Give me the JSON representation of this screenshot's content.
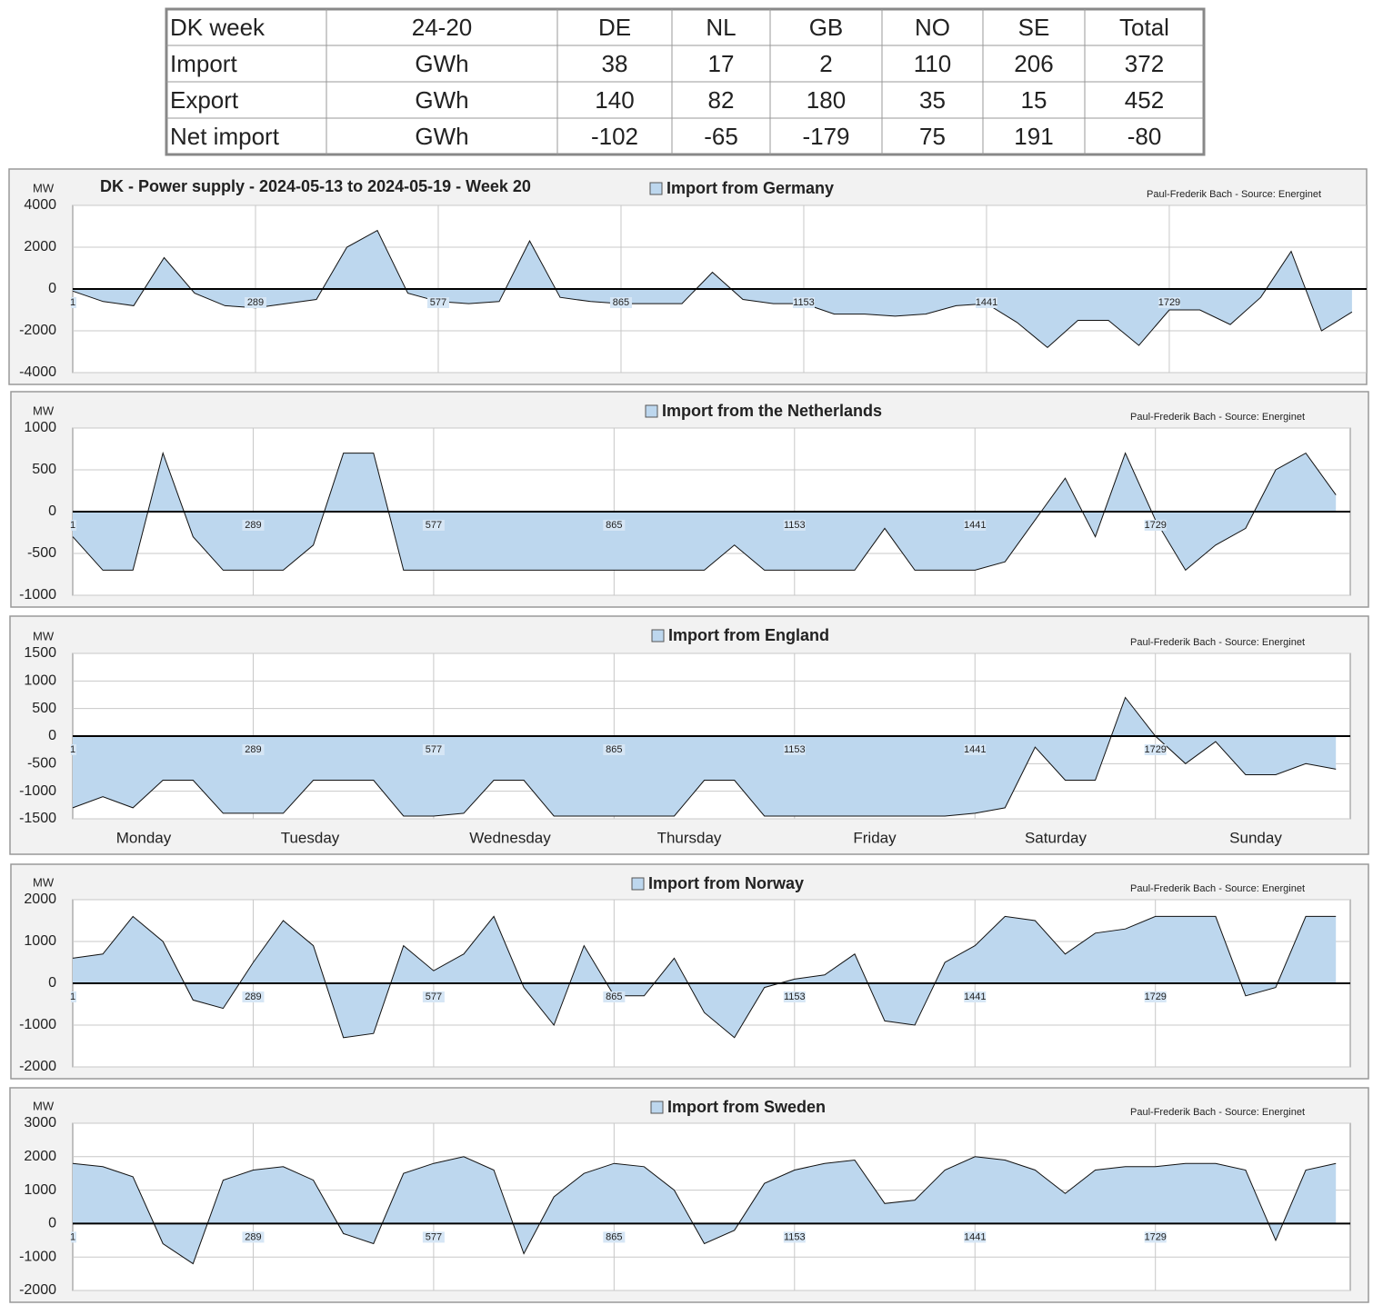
{
  "table": {
    "header": [
      "DK week",
      "24-20",
      "DE",
      "NL",
      "GB",
      "NO",
      "SE",
      "Total"
    ],
    "rows": [
      [
        "Import",
        "GWh",
        "38",
        "17",
        "2",
        "110",
        "206",
        "372"
      ],
      [
        "Export",
        "GWh",
        "140",
        "82",
        "180",
        "35",
        "15",
        "452"
      ],
      [
        "Net import",
        "GWh",
        "-102",
        "-65",
        "-179",
        "75",
        "191",
        "-80"
      ]
    ]
  },
  "chart_data": [
    {
      "type": "area",
      "title": "DK - Power supply  - 2024-05-13 to 2024-05-19 - Week 20",
      "y_label": "MW",
      "source": "Paul-Frederik Bach - Source: Energinet",
      "x": [
        1,
        49,
        97,
        145,
        193,
        241,
        289,
        337,
        385,
        433,
        481,
        529,
        577,
        625,
        673,
        721,
        769,
        817,
        865,
        913,
        961,
        1009,
        1057,
        1105,
        1153,
        1201,
        1249,
        1297,
        1345,
        1393,
        1441,
        1489,
        1537,
        1585,
        1633,
        1681,
        1729,
        1777,
        1825,
        1873,
        1921,
        1969,
        2017
      ],
      "series": [
        {
          "name": "Import from Germany",
          "color": "#bdd7ee",
          "values": [
            -100,
            -600,
            -800,
            1500,
            -200,
            -800,
            -900,
            -700,
            -500,
            2000,
            2800,
            -200,
            -600,
            -700,
            -600,
            2300,
            -400,
            -600,
            -700,
            -700,
            -700,
            800,
            -500,
            -700,
            -700,
            -1200,
            -1200,
            -1300,
            -1200,
            -800,
            -700,
            -1600,
            -2800,
            -1500,
            -1500,
            -2700,
            -1000,
            -1000,
            -1700,
            -400,
            1800,
            -2000,
            -1100
          ]
        }
      ],
      "xlim": [
        1,
        2040
      ],
      "xticks": [
        1,
        289,
        577,
        865,
        1153,
        1441,
        1729
      ],
      "ylim": [
        -4000,
        4000
      ],
      "yticks": [
        -4000,
        -2000,
        0,
        2000,
        4000
      ],
      "grid": true
    },
    {
      "type": "area",
      "y_label": "MW",
      "source": "Paul-Frederik Bach - Source: Energinet",
      "x": [
        1,
        49,
        97,
        145,
        193,
        241,
        289,
        337,
        385,
        433,
        481,
        529,
        577,
        625,
        673,
        721,
        769,
        817,
        865,
        913,
        961,
        1009,
        1057,
        1105,
        1153,
        1201,
        1249,
        1297,
        1345,
        1393,
        1441,
        1489,
        1537,
        1585,
        1633,
        1681,
        1729,
        1777,
        1825,
        1873,
        1921,
        1969,
        2017
      ],
      "series": [
        {
          "name": "Import from the Netherlands",
          "color": "#bdd7ee",
          "values": [
            -300,
            -700,
            -700,
            700,
            -300,
            -700,
            -700,
            -700,
            -400,
            700,
            700,
            -700,
            -700,
            -700,
            -700,
            -700,
            -700,
            -700,
            -700,
            -700,
            -700,
            -700,
            -400,
            -700,
            -700,
            -700,
            -700,
            -200,
            -700,
            -700,
            -700,
            -600,
            -100,
            400,
            -300,
            700,
            -100,
            -700,
            -400,
            -200,
            500,
            700,
            200
          ]
        }
      ],
      "xlim": [
        1,
        2040
      ],
      "xticks": [
        1,
        289,
        577,
        865,
        1153,
        1441,
        1729
      ],
      "ylim": [
        -1000,
        1000
      ],
      "yticks": [
        -1000,
        -500,
        0,
        500,
        1000
      ],
      "grid": true
    },
    {
      "type": "area",
      "y_label": "MW",
      "source": "Paul-Frederik Bach - Source: Energinet",
      "x": [
        1,
        49,
        97,
        145,
        193,
        241,
        289,
        337,
        385,
        433,
        481,
        529,
        577,
        625,
        673,
        721,
        769,
        817,
        865,
        913,
        961,
        1009,
        1057,
        1105,
        1153,
        1201,
        1249,
        1297,
        1345,
        1393,
        1441,
        1489,
        1537,
        1585,
        1633,
        1681,
        1729,
        1777,
        1825,
        1873,
        1921,
        1969,
        2017
      ],
      "series": [
        {
          "name": "Import from England",
          "color": "#bdd7ee",
          "values": [
            -1300,
            -1100,
            -1300,
            -800,
            -800,
            -1400,
            -1400,
            -1400,
            -800,
            -800,
            -800,
            -1450,
            -1450,
            -1400,
            -800,
            -800,
            -1450,
            -1450,
            -1450,
            -1450,
            -1450,
            -800,
            -800,
            -1450,
            -1450,
            -1450,
            -1450,
            -1450,
            -1450,
            -1450,
            -1400,
            -1300,
            -200,
            -800,
            -800,
            700,
            0,
            -500,
            -100,
            -700,
            -700,
            -500,
            -600
          ]
        }
      ],
      "xlim": [
        1,
        2040
      ],
      "xticks": [
        1,
        289,
        577,
        865,
        1153,
        1441,
        1729
      ],
      "ylim": [
        -1500,
        1500
      ],
      "yticks": [
        -1500,
        -1000,
        -500,
        0,
        500,
        1000,
        1500
      ],
      "grid": true,
      "day_labels": [
        "Monday",
        "Tuesday",
        "Wednesday",
        "Thursday",
        "Friday",
        "Saturday",
        "Sunday"
      ]
    },
    {
      "type": "area",
      "y_label": "MW",
      "source": "Paul-Frederik Bach - Source: Energinet",
      "x": [
        1,
        49,
        97,
        145,
        193,
        241,
        289,
        337,
        385,
        433,
        481,
        529,
        577,
        625,
        673,
        721,
        769,
        817,
        865,
        913,
        961,
        1009,
        1057,
        1105,
        1153,
        1201,
        1249,
        1297,
        1345,
        1393,
        1441,
        1489,
        1537,
        1585,
        1633,
        1681,
        1729,
        1777,
        1825,
        1873,
        1921,
        1969,
        2017
      ],
      "series": [
        {
          "name": "Import from Norway",
          "color": "#bdd7ee",
          "values": [
            600,
            700,
            1600,
            1000,
            -400,
            -600,
            500,
            1500,
            900,
            -1300,
            -1200,
            900,
            300,
            700,
            1600,
            -100,
            -1000,
            900,
            -300,
            -300,
            600,
            -700,
            -1300,
            -100,
            100,
            200,
            700,
            -900,
            -1000,
            500,
            900,
            1600,
            1500,
            700,
            1200,
            1300,
            1600,
            1600,
            1600,
            -300,
            -100,
            1600,
            1600
          ]
        }
      ],
      "xlim": [
        1,
        2040
      ],
      "xticks": [
        1,
        289,
        577,
        865,
        1153,
        1441,
        1729
      ],
      "ylim": [
        -2000,
        2000
      ],
      "yticks": [
        -2000,
        -1000,
        0,
        1000,
        2000
      ],
      "grid": true
    },
    {
      "type": "area",
      "y_label": "MW",
      "source": "Paul-Frederik Bach - Source: Energinet",
      "x": [
        1,
        49,
        97,
        145,
        193,
        241,
        289,
        337,
        385,
        433,
        481,
        529,
        577,
        625,
        673,
        721,
        769,
        817,
        865,
        913,
        961,
        1009,
        1057,
        1105,
        1153,
        1201,
        1249,
        1297,
        1345,
        1393,
        1441,
        1489,
        1537,
        1585,
        1633,
        1681,
        1729,
        1777,
        1825,
        1873,
        1921,
        1969,
        2017
      ],
      "series": [
        {
          "name": "Import from Sweden",
          "color": "#bdd7ee",
          "values": [
            1800,
            1700,
            1400,
            -600,
            -1200,
            1300,
            1600,
            1700,
            1300,
            -300,
            -600,
            1500,
            1800,
            2000,
            1600,
            -900,
            800,
            1500,
            1800,
            1700,
            1000,
            -600,
            -200,
            1200,
            1600,
            1800,
            1900,
            600,
            700,
            1600,
            2000,
            1900,
            1600,
            900,
            1600,
            1700,
            1700,
            1800,
            1800,
            1600,
            -500,
            1600,
            1800
          ]
        }
      ],
      "xlim": [
        1,
        2040
      ],
      "xticks": [
        1,
        289,
        577,
        865,
        1153,
        1441,
        1729
      ],
      "ylim": [
        -2000,
        3000
      ],
      "yticks": [
        -2000,
        -1000,
        0,
        1000,
        2000,
        3000
      ],
      "grid": true
    }
  ]
}
